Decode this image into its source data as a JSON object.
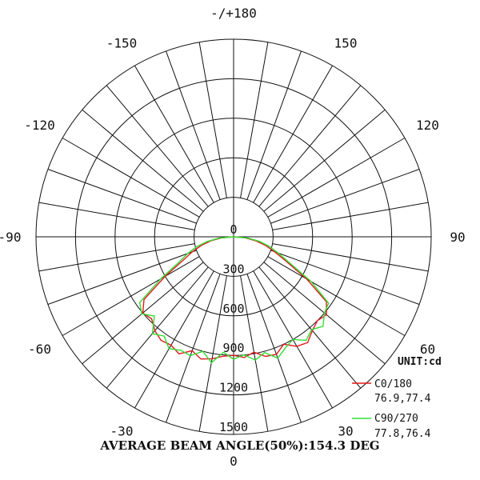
{
  "chart_data": {
    "type": "polar",
    "title": "",
    "angle_unit": "deg",
    "angle_tick_labels": [
      {
        "deg": 180,
        "label": "-/+180"
      },
      {
        "deg": -150,
        "label": "-150"
      },
      {
        "deg": 150,
        "label": "150"
      },
      {
        "deg": -120,
        "label": "-120"
      },
      {
        "deg": 120,
        "label": "120"
      },
      {
        "deg": -90,
        "label": "-90"
      },
      {
        "deg": 90,
        "label": "90"
      },
      {
        "deg": -60,
        "label": "-60"
      },
      {
        "deg": 60,
        "label": "60"
      },
      {
        "deg": -30,
        "label": "-30"
      },
      {
        "deg": 30,
        "label": "30"
      },
      {
        "deg": 0,
        "label": "0"
      }
    ],
    "radial_ticks": [
      0,
      300,
      600,
      900,
      1200,
      1500
    ],
    "radial_tick_labels": [
      "0",
      "300",
      "600",
      "900",
      "1200",
      "1500"
    ],
    "radial_max": 1500,
    "radial_grid_step": 300,
    "angular_grid_step_deg": 10,
    "unit_label": "UNIT:cd",
    "legend_position": "bottom-right",
    "angles": [
      -90,
      -85,
      -80,
      -75,
      -70,
      -65,
      -60,
      -55,
      -50,
      -45,
      -40,
      -35,
      -30,
      -25,
      -20,
      -15,
      -10,
      -5,
      0,
      5,
      10,
      15,
      20,
      25,
      30,
      35,
      40,
      45,
      50,
      55,
      60,
      65,
      70,
      75,
      80,
      85,
      90
    ],
    "series": [
      {
        "name": "C0/180",
        "color": "#e31a1c",
        "beam_angles": "76.9,77.4",
        "values": [
          0,
          95,
          175,
          255,
          335,
          425,
          600,
          830,
          900,
          880,
          930,
          960,
          950,
          980,
          920,
          960,
          940,
          910,
          900,
          920,
          890,
          940,
          950,
          900,
          960,
          980,
          930,
          900,
          920,
          860,
          640,
          440,
          330,
          250,
          170,
          90,
          0
        ]
      },
      {
        "name": "C90/270",
        "color": "#33dd33",
        "beam_angles": "77.8,76.4",
        "values": [
          0,
          110,
          205,
          290,
          370,
          460,
          640,
          870,
          910,
          850,
          960,
          920,
          980,
          950,
          960,
          900,
          970,
          880,
          930,
          900,
          950,
          910,
          980,
          930,
          900,
          960,
          920,
          960,
          900,
          880,
          680,
          470,
          360,
          280,
          200,
          105,
          0
        ]
      }
    ],
    "footer": "AVERAGE BEAM ANGLE(50%):154.3 DEG"
  }
}
